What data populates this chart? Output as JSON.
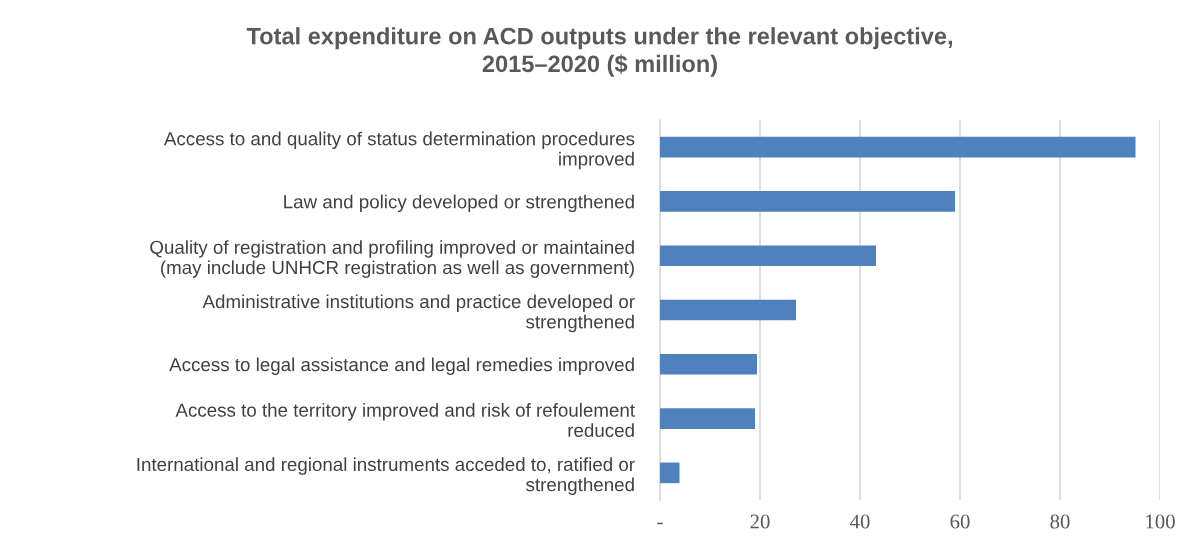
{
  "chart_data": {
    "type": "bar",
    "orientation": "horizontal",
    "title": "Total expenditure on ACD outputs under the relevant objective,\n2015–2020 ($ million)",
    "categories": [
      "Access to and quality of status determination procedures\nimproved",
      "Law and policy developed or strengthened",
      "Quality of registration and profiling improved or maintained\n(may include UNHCR registration as well as government)",
      "Administrative institutions and practice developed or\nstrengthened",
      "Access to legal assistance and legal remedies improved",
      "Access to the territory improved and risk of refoulement\nreduced",
      "International and regional instruments acceded to, ratified or\nstrengthened"
    ],
    "values": [
      95.1,
      59.0,
      43.2,
      27.2,
      19.4,
      19.0,
      3.9
    ],
    "color": "#4f81bd",
    "xlim": [
      0,
      100
    ],
    "xticks": [
      {
        "value": 0,
        "label": "-"
      },
      20,
      40,
      60,
      80,
      100
    ],
    "grid": "x",
    "legend": false
  }
}
